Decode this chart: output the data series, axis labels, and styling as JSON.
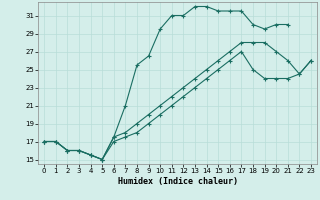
{
  "title": "",
  "xlabel": "Humidex (Indice chaleur)",
  "xlim": [
    -0.5,
    23.5
  ],
  "ylim": [
    14.5,
    32.5
  ],
  "xticks": [
    0,
    1,
    2,
    3,
    4,
    5,
    6,
    7,
    8,
    9,
    10,
    11,
    12,
    13,
    14,
    15,
    16,
    17,
    18,
    19,
    20,
    21,
    22,
    23
  ],
  "yticks": [
    15,
    17,
    19,
    21,
    23,
    25,
    27,
    29,
    31
  ],
  "bg_color": "#d4eeea",
  "line_color": "#1a6e62",
  "grid_color": "#b8ddd8",
  "line1_x": [
    0,
    1,
    2,
    3,
    4,
    5,
    6,
    7,
    8,
    9,
    10,
    11,
    12,
    13,
    14,
    15,
    16,
    17,
    18,
    19,
    20,
    21
  ],
  "line1_y": [
    17,
    17,
    16,
    16,
    15.5,
    15,
    17.5,
    21,
    25.5,
    26.5,
    29.5,
    31,
    31,
    32,
    32,
    31.5,
    31.5,
    31.5,
    30,
    29.5,
    30,
    30
  ],
  "line2_x": [
    0,
    1,
    2,
    3,
    4,
    5,
    6,
    7,
    8,
    9,
    10,
    11,
    12,
    13,
    14,
    15,
    16,
    17,
    18,
    19,
    20,
    21,
    22,
    23
  ],
  "line2_y": [
    17,
    17,
    16,
    16,
    15.5,
    15,
    17.5,
    18,
    19,
    20,
    21,
    22,
    23,
    24,
    25,
    26,
    27,
    28,
    28,
    28,
    27,
    26,
    24.5,
    26
  ],
  "line3_x": [
    0,
    1,
    2,
    3,
    4,
    5,
    6,
    7,
    8,
    9,
    10,
    11,
    12,
    13,
    14,
    15,
    16,
    17,
    18,
    19,
    20,
    21,
    22,
    23
  ],
  "line3_y": [
    17,
    17,
    16,
    16,
    15.5,
    15,
    17,
    17.5,
    18,
    19,
    20,
    21,
    22,
    23,
    24,
    25,
    26,
    27,
    25,
    24,
    24,
    24,
    24.5,
    26
  ]
}
